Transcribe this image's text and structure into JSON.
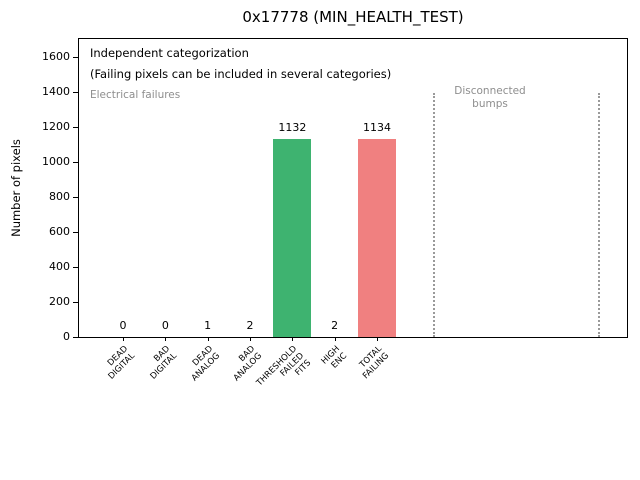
{
  "chart_data": {
    "type": "bar",
    "title": "0x17778 (MIN_HEALTH_TEST)",
    "xlabel": "",
    "ylabel": "Number of pixels",
    "categories": [
      "DEAD\nDIGITAL",
      "BAD\nDIGITAL",
      "DEAD\nANALOG",
      "BAD\nANALOG",
      "THRESHOLD\nFAILED\nFITS",
      "HIGH\nENC",
      "TOTAL\nFAILING"
    ],
    "values": [
      0,
      0,
      1,
      2,
      1132,
      2,
      1134
    ],
    "bar_value_labels": [
      "0",
      "0",
      "1",
      "2",
      "1132",
      "2",
      "1134"
    ],
    "bar_colors": [
      "#3eb370",
      "#3eb370",
      "#3eb370",
      "#3eb370",
      "#3eb370",
      "#3eb370",
      "#f08080"
    ],
    "yticks": [
      0,
      200,
      400,
      600,
      800,
      1000,
      1200,
      1400,
      1600
    ],
    "ylim": [
      0,
      1709
    ],
    "grid": false,
    "legend": "none",
    "annotations": {
      "line1": "Independent categorization",
      "line2": "(Failing pixels can be included in several categories)",
      "region_left_label": "Electrical failures",
      "region_right_label": "Disconnected\nbumps"
    },
    "colors": {
      "green_bar": "#3eb370",
      "red_bar": "#f08080",
      "annotation_gray": "#8e8e8e",
      "separator_gray": "#9a9a9a"
    }
  }
}
